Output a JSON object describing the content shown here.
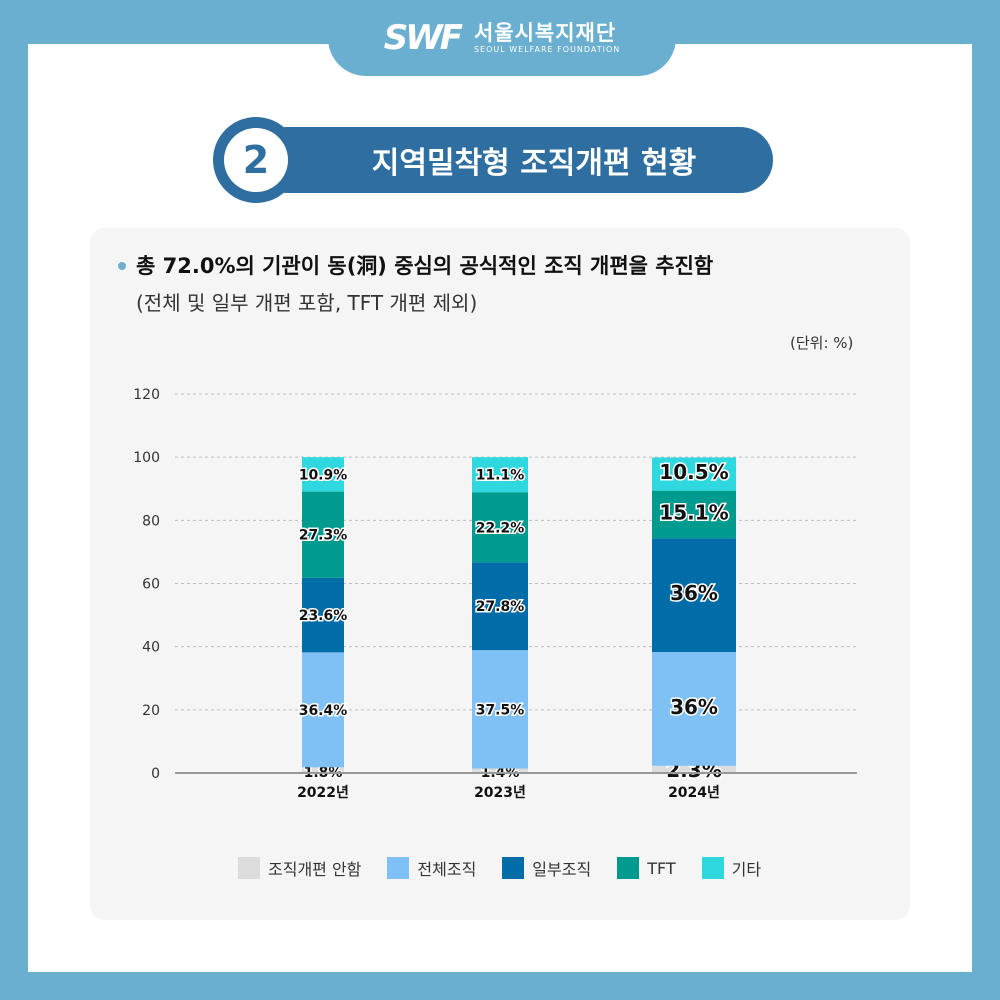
{
  "header": {
    "logo_mark": "SWF",
    "org_name": "서울시복지재단",
    "org_name_en": "SEOUL WELFARE FOUNDATION"
  },
  "section": {
    "number": "2",
    "title": "지역밀착형 조직개편 현황"
  },
  "summary": {
    "headline": "총 72.0%의 기관이 동(洞) 중심의 공식적인 조직 개편을 추진함",
    "subline": "(전체 및 일부 개편 포함, TFT 개편 제외)",
    "unit": "(단위: %)"
  },
  "colors": {
    "no_reorg": "#dcdcdc",
    "full_org": "#7fc0f5",
    "partial_org": "#006da8",
    "tft": "#009b8f",
    "other": "#2fd8de"
  },
  "chart_data": {
    "type": "bar",
    "stacked": true,
    "categories": [
      "2022년",
      "2023년",
      "2024년"
    ],
    "series": [
      {
        "name": "조직개편 안함",
        "values": [
          1.8,
          1.4,
          2.3
        ],
        "labels": [
          "1.8%",
          "1.4%",
          "2.3%"
        ],
        "color": "#dcdcdc"
      },
      {
        "name": "전체조직",
        "values": [
          36.4,
          37.5,
          36
        ],
        "labels": [
          "36.4%",
          "37.5%",
          "36%"
        ],
        "color": "#7fc0f5"
      },
      {
        "name": "일부조직",
        "values": [
          23.6,
          27.8,
          36
        ],
        "labels": [
          "23.6%",
          "27.8%",
          "36%"
        ],
        "color": "#006da8"
      },
      {
        "name": "TFT",
        "values": [
          27.3,
          22.2,
          15.1
        ],
        "labels": [
          "27.3%",
          "22.2%",
          "15.1%"
        ],
        "color": "#009b8f"
      },
      {
        "name": "기타",
        "values": [
          10.9,
          11.1,
          10.5
        ],
        "labels": [
          "10.9%",
          "11.1%",
          "10.5%"
        ],
        "color": "#2fd8de"
      }
    ],
    "yticks": [
      0,
      20,
      40,
      60,
      80,
      100,
      120
    ],
    "ylim": [
      0,
      120
    ],
    "grid": true,
    "legend_position": "bottom"
  }
}
